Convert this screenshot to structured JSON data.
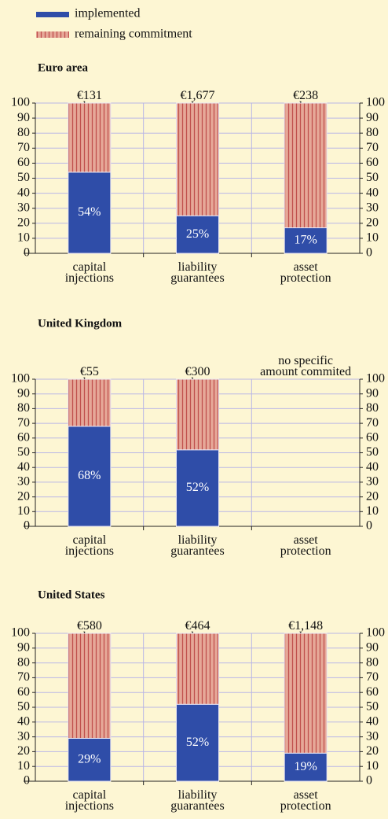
{
  "chart_data": [
    {
      "type": "bar",
      "title": "Euro area",
      "categories": [
        "capital injections",
        "liability guarantees",
        "asset protection"
      ],
      "amount_labels": [
        "€131 bn",
        "€1,677 bn",
        "€238 bn"
      ],
      "series": [
        {
          "name": "implemented",
          "color": "#2f4da8",
          "values": [
            54,
            25,
            17
          ],
          "value_labels": [
            "54%",
            "25%",
            "17%"
          ]
        },
        {
          "name": "remaining commitment",
          "color": "#e6a898",
          "values": [
            46,
            75,
            83
          ]
        }
      ],
      "ylim": [
        0,
        100
      ],
      "yticks": [
        0,
        10,
        20,
        30,
        40,
        50,
        60,
        70,
        80,
        90,
        100
      ],
      "grid": true
    },
    {
      "type": "bar",
      "title": "United Kingdom",
      "categories": [
        "capital injections",
        "liability guarantees",
        "asset protection"
      ],
      "amount_labels": [
        "€55 bn",
        "€300 bn",
        "no specific\namount commited"
      ],
      "series": [
        {
          "color": "#2f4da8",
          "values": [
            68,
            52,
            null
          ],
          "value_labels": [
            "68%",
            "52%",
            null
          ]
        },
        {
          "color": "#e6a898",
          "values": [
            32,
            48,
            null
          ]
        }
      ],
      "ylim": [
        0,
        100
      ],
      "yticks": [
        0,
        10,
        20,
        30,
        40,
        50,
        60,
        70,
        80,
        90,
        100
      ],
      "grid": true
    },
    {
      "type": "bar",
      "title": "United States",
      "categories": [
        "capital injections",
        "liability guarantees",
        "asset protection"
      ],
      "amount_labels": [
        "€580 bn",
        "€464 bn",
        "€1,148 bn"
      ],
      "series": [
        {
          "color": "#2f4da8",
          "values": [
            29,
            52,
            19
          ],
          "value_labels": [
            "29%",
            "52%",
            "19%"
          ]
        },
        {
          "color": "#e6a898",
          "values": [
            71,
            48,
            81
          ]
        }
      ],
      "ylim": [
        0,
        100
      ],
      "yticks": [
        0,
        10,
        20,
        30,
        40,
        50,
        60,
        70,
        80,
        90,
        100
      ],
      "grid": true
    }
  ]
}
